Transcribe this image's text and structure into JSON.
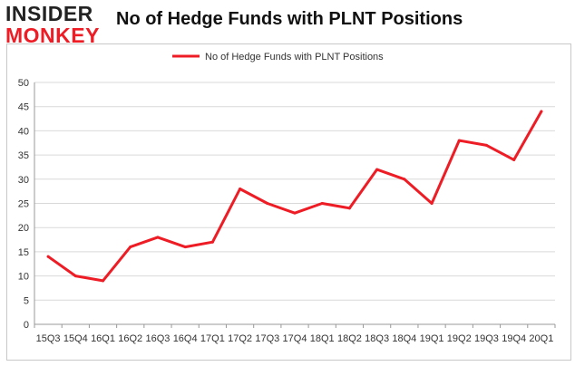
{
  "header": {
    "logo_top": "INSIDER",
    "logo_bottom": "MONKEY",
    "title": "No of Hedge Funds with PLNT Positions"
  },
  "colors": {
    "series": "#ee1c25",
    "grid": "#d9d9d9",
    "axis": "#999999"
  },
  "chart_data": {
    "type": "line",
    "title": "No of Hedge Funds with PLNT Positions",
    "xlabel": "",
    "ylabel": "",
    "ylim": [
      0,
      50
    ],
    "yticks": [
      0,
      5,
      10,
      15,
      20,
      25,
      30,
      35,
      40,
      45,
      50
    ],
    "grid": "horizontal",
    "legend_position": "top-center",
    "categories": [
      "15Q3",
      "15Q4",
      "16Q1",
      "16Q2",
      "16Q3",
      "16Q4",
      "17Q1",
      "17Q2",
      "17Q3",
      "17Q4",
      "18Q1",
      "18Q2",
      "18Q3",
      "18Q4",
      "19Q1",
      "19Q2",
      "19Q3",
      "19Q4",
      "20Q1"
    ],
    "series": [
      {
        "name": "No of Hedge Funds with PLNT Positions",
        "values": [
          14,
          10,
          9,
          16,
          18,
          16,
          17,
          28,
          25,
          23,
          25,
          24,
          32,
          30,
          25,
          38,
          37,
          34,
          44
        ]
      }
    ]
  }
}
